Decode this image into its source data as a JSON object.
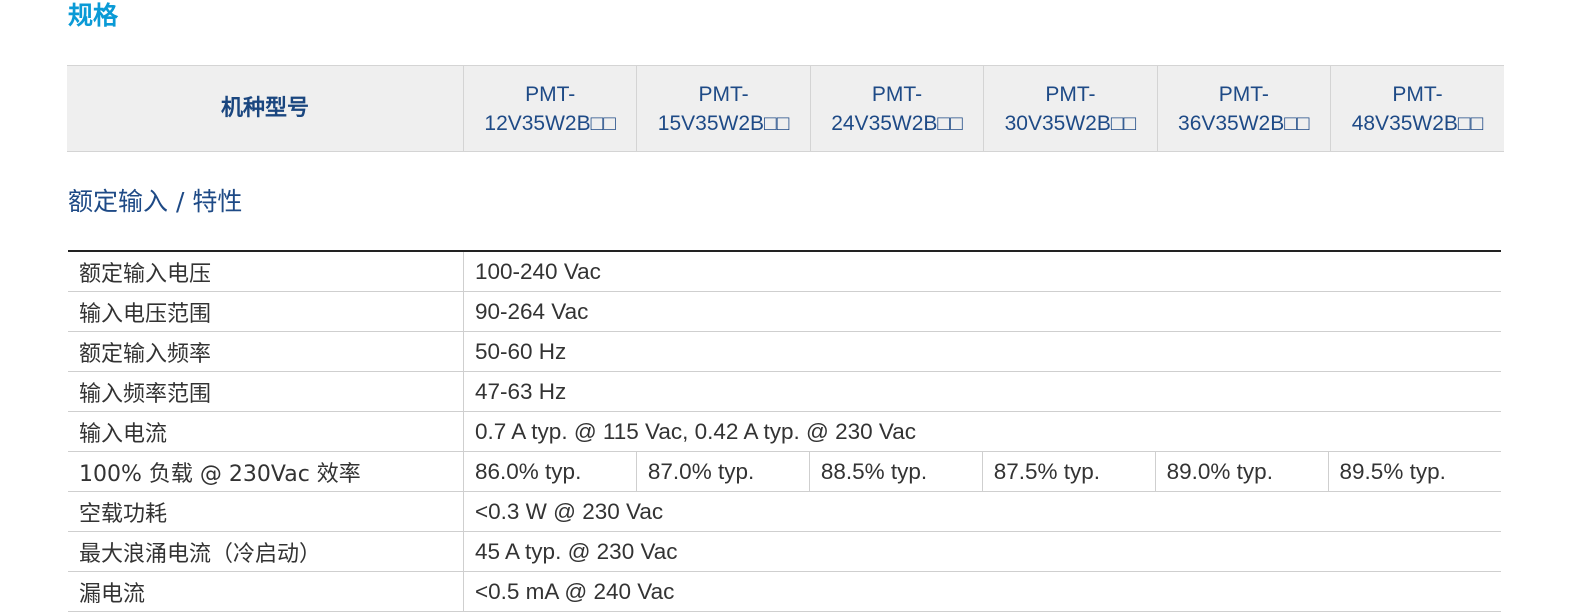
{
  "section_title": "规格",
  "model_header": {
    "label": "机种型号",
    "models": [
      {
        "line1": "PMT-",
        "line2": "12V35W2B□□"
      },
      {
        "line1": "PMT-",
        "line2": "15V35W2B□□"
      },
      {
        "line1": "PMT-",
        "line2": "24V35W2B□□"
      },
      {
        "line1": "PMT-",
        "line2": "30V35W2B□□"
      },
      {
        "line1": "PMT-",
        "line2": "36V35W2B□□"
      },
      {
        "line1": "PMT-",
        "line2": "48V35W2B□□"
      }
    ]
  },
  "subsection_title": "额定输入 / 特性",
  "specs": [
    {
      "label": "额定输入电压",
      "value": "100-240 Vac"
    },
    {
      "label": "输入电压范围",
      "value": "90-264 Vac"
    },
    {
      "label": "额定输入频率",
      "value": "50-60 Hz"
    },
    {
      "label": "输入频率范围",
      "value": "47-63 Hz"
    },
    {
      "label": "输入电流",
      "value": "0.7 A typ. @ 115 Vac, 0.42 A typ. @ 230 Vac"
    },
    {
      "label": "100% 负载 @ 230Vac 效率",
      "values": [
        "86.0% typ.",
        "87.0% typ.",
        "88.5% typ.",
        "87.5% typ.",
        "89.0% typ.",
        "89.5% typ."
      ]
    },
    {
      "label": "空载功耗",
      "value": "<0.3 W @ 230 Vac"
    },
    {
      "label": "最大浪涌电流（冷启动）",
      "value": "45 A typ. @ 230 Vac"
    },
    {
      "label": "漏电流",
      "value": "<0.5 mA @ 240 Vac"
    }
  ],
  "colors": {
    "title_blue": "#0a9ad6",
    "heading_navy": "#1e4a86",
    "header_bg": "#efefef",
    "text": "#333333"
  }
}
